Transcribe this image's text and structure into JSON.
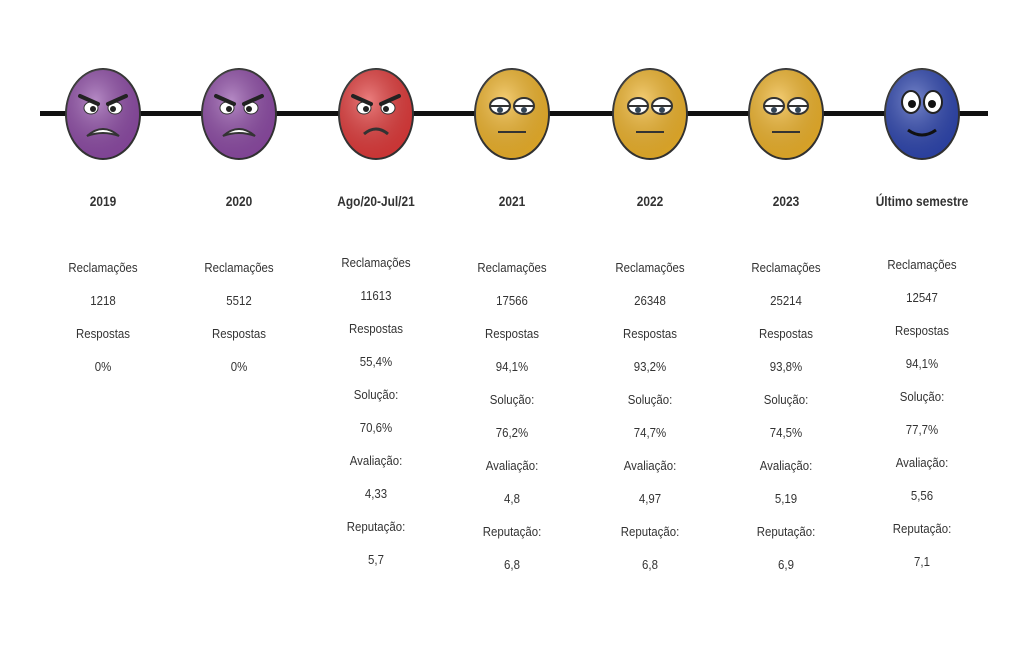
{
  "periods": [
    {
      "label": "2019",
      "mood": "angry",
      "color": "#8e4ba6",
      "stats": [
        "Reclamações",
        "1218",
        "Respostas",
        "0%"
      ]
    },
    {
      "label": "2020",
      "mood": "angry",
      "color": "#8e4ba6",
      "stats": [
        "Reclamações",
        "5512",
        "Respostas",
        "0%"
      ]
    },
    {
      "label": "Ago/20-Jul/21",
      "mood": "mad",
      "color": "#e23a3a",
      "stats": [
        "Reclamações",
        "11613",
        "Respostas",
        "55,4%",
        "Solução:",
        "70,6%",
        "Avaliação:",
        "4,33",
        "Reputação:",
        "5,7"
      ]
    },
    {
      "label": "2021",
      "mood": "meh",
      "color": "#f0b42a",
      "stats": [
        "Reclamações",
        "17566",
        "Respostas",
        "94,1%",
        "Solução:",
        "76,2%",
        "Avaliação:",
        "4,8",
        "Reputação:",
        "6,8"
      ]
    },
    {
      "label": "2022",
      "mood": "meh",
      "color": "#f0b42a",
      "stats": [
        "Reclamações",
        "26348",
        "Respostas",
        "93,2%",
        "Solução:",
        "74,7%",
        "Avaliação:",
        "4,97",
        "Reputação:",
        "6,8"
      ]
    },
    {
      "label": "2023",
      "mood": "meh",
      "color": "#f0b42a",
      "stats": [
        "Reclamações",
        "25214",
        "Respostas",
        "93,8%",
        "Solução:",
        "74,5%",
        "Avaliação:",
        "5,19",
        "Reputação:",
        "6,9"
      ]
    },
    {
      "label": "Último semestre",
      "mood": "happy",
      "color": "#2e46b0",
      "stats": [
        "Reclamações",
        "12547",
        "Respostas",
        "94,1%",
        "Solução:",
        "77,7%",
        "Avaliação:",
        "5,56",
        "Reputação:",
        "7,1"
      ]
    }
  ]
}
